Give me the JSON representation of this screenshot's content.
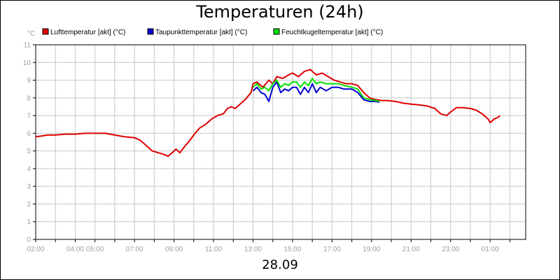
{
  "chart_data": {
    "type": "line",
    "title": "Temperaturen (24h)",
    "date_label": "28.09",
    "y_unit_label": "°C",
    "ylim": [
      0,
      11
    ],
    "y_ticks": [
      "0",
      "1",
      "2",
      "3",
      "4",
      "5",
      "6",
      "7",
      "8",
      "9",
      "10",
      "11"
    ],
    "x_ticks": [
      "02:00",
      "04:00",
      "05:00",
      "07:00",
      "09:00",
      "11:00",
      "13:00",
      "15:00",
      "17:00",
      "19:00",
      "21:00",
      "23:00",
      "01:00"
    ],
    "x_tick_hours": [
      2,
      4,
      5,
      7,
      9,
      11,
      13,
      15,
      17,
      19,
      21,
      23,
      25
    ],
    "x_range_hours": [
      2,
      26.8
    ],
    "grid": true,
    "legend_position": "top",
    "series": [
      {
        "name": "Lufttemperatur [akt] (°C)",
        "color": "#e00000",
        "points": [
          [
            2.0,
            5.8
          ],
          [
            2.3,
            5.85
          ],
          [
            2.6,
            5.9
          ],
          [
            3.0,
            5.9
          ],
          [
            3.5,
            5.95
          ],
          [
            4.0,
            5.95
          ],
          [
            4.5,
            6.0
          ],
          [
            5.0,
            6.0
          ],
          [
            5.5,
            6.0
          ],
          [
            6.0,
            5.9
          ],
          [
            6.5,
            5.8
          ],
          [
            7.0,
            5.75
          ],
          [
            7.3,
            5.6
          ],
          [
            7.6,
            5.3
          ],
          [
            7.9,
            5.0
          ],
          [
            8.2,
            4.9
          ],
          [
            8.5,
            4.8
          ],
          [
            8.7,
            4.7
          ],
          [
            8.9,
            4.9
          ],
          [
            9.1,
            5.1
          ],
          [
            9.3,
            4.9
          ],
          [
            9.5,
            5.2
          ],
          [
            9.8,
            5.6
          ],
          [
            10.0,
            5.9
          ],
          [
            10.3,
            6.3
          ],
          [
            10.6,
            6.5
          ],
          [
            10.9,
            6.8
          ],
          [
            11.2,
            7.0
          ],
          [
            11.5,
            7.1
          ],
          [
            11.7,
            7.4
          ],
          [
            11.9,
            7.5
          ],
          [
            12.1,
            7.4
          ],
          [
            12.3,
            7.6
          ],
          [
            12.6,
            7.9
          ],
          [
            12.9,
            8.3
          ],
          [
            13.0,
            8.8
          ],
          [
            13.2,
            8.9
          ],
          [
            13.5,
            8.6
          ],
          [
            13.8,
            9.0
          ],
          [
            14.0,
            8.8
          ],
          [
            14.2,
            9.2
          ],
          [
            14.5,
            9.1
          ],
          [
            14.8,
            9.3
          ],
          [
            15.0,
            9.4
          ],
          [
            15.3,
            9.2
          ],
          [
            15.6,
            9.5
          ],
          [
            15.9,
            9.6
          ],
          [
            16.2,
            9.3
          ],
          [
            16.5,
            9.4
          ],
          [
            16.8,
            9.2
          ],
          [
            17.1,
            9.0
          ],
          [
            17.4,
            8.9
          ],
          [
            17.7,
            8.8
          ],
          [
            18.0,
            8.8
          ],
          [
            18.3,
            8.7
          ],
          [
            18.6,
            8.3
          ],
          [
            18.9,
            8.0
          ],
          [
            19.2,
            7.9
          ],
          [
            19.5,
            7.85
          ],
          [
            19.8,
            7.85
          ],
          [
            20.2,
            7.8
          ],
          [
            20.6,
            7.7
          ],
          [
            21.0,
            7.65
          ],
          [
            21.4,
            7.6
          ],
          [
            21.8,
            7.55
          ],
          [
            22.2,
            7.4
          ],
          [
            22.5,
            7.1
          ],
          [
            22.8,
            7.0
          ],
          [
            23.0,
            7.2
          ],
          [
            23.3,
            7.45
          ],
          [
            23.6,
            7.45
          ],
          [
            24.0,
            7.4
          ],
          [
            24.3,
            7.3
          ],
          [
            24.6,
            7.1
          ],
          [
            24.9,
            6.8
          ],
          [
            25.0,
            6.6
          ],
          [
            25.2,
            6.8
          ],
          [
            25.4,
            6.9
          ],
          [
            25.5,
            7.0
          ]
        ]
      },
      {
        "name": "Taupunkttemperatur [akt] (°C)",
        "color": "#0000d0",
        "points": [
          [
            13.0,
            8.4
          ],
          [
            13.2,
            8.6
          ],
          [
            13.4,
            8.3
          ],
          [
            13.6,
            8.2
          ],
          [
            13.8,
            7.8
          ],
          [
            14.0,
            8.6
          ],
          [
            14.2,
            8.9
          ],
          [
            14.4,
            8.3
          ],
          [
            14.6,
            8.5
          ],
          [
            14.8,
            8.4
          ],
          [
            15.0,
            8.6
          ],
          [
            15.2,
            8.6
          ],
          [
            15.4,
            8.2
          ],
          [
            15.6,
            8.6
          ],
          [
            15.8,
            8.3
          ],
          [
            16.0,
            8.8
          ],
          [
            16.2,
            8.3
          ],
          [
            16.4,
            8.6
          ],
          [
            16.7,
            8.4
          ],
          [
            17.0,
            8.6
          ],
          [
            17.3,
            8.6
          ],
          [
            17.6,
            8.5
          ],
          [
            18.0,
            8.5
          ],
          [
            18.3,
            8.3
          ],
          [
            18.6,
            7.9
          ],
          [
            18.9,
            7.8
          ],
          [
            19.2,
            7.8
          ],
          [
            19.4,
            7.75
          ]
        ]
      },
      {
        "name": "Feuchtkugeltemperatur [akt] (°C)",
        "color": "#00e000",
        "points": [
          [
            13.0,
            8.6
          ],
          [
            13.2,
            8.8
          ],
          [
            13.4,
            8.5
          ],
          [
            13.6,
            8.6
          ],
          [
            13.8,
            8.4
          ],
          [
            14.0,
            8.8
          ],
          [
            14.2,
            9.0
          ],
          [
            14.4,
            8.6
          ],
          [
            14.6,
            8.8
          ],
          [
            14.8,
            8.7
          ],
          [
            15.0,
            8.9
          ],
          [
            15.2,
            8.9
          ],
          [
            15.4,
            8.6
          ],
          [
            15.6,
            8.9
          ],
          [
            15.8,
            8.7
          ],
          [
            16.0,
            9.1
          ],
          [
            16.2,
            8.8
          ],
          [
            16.4,
            8.9
          ],
          [
            16.7,
            8.8
          ],
          [
            17.0,
            8.8
          ],
          [
            17.3,
            8.8
          ],
          [
            17.6,
            8.7
          ],
          [
            18.0,
            8.6
          ],
          [
            18.3,
            8.5
          ],
          [
            18.6,
            8.0
          ],
          [
            18.9,
            7.9
          ],
          [
            19.2,
            7.85
          ],
          [
            19.4,
            7.8
          ]
        ]
      }
    ]
  }
}
